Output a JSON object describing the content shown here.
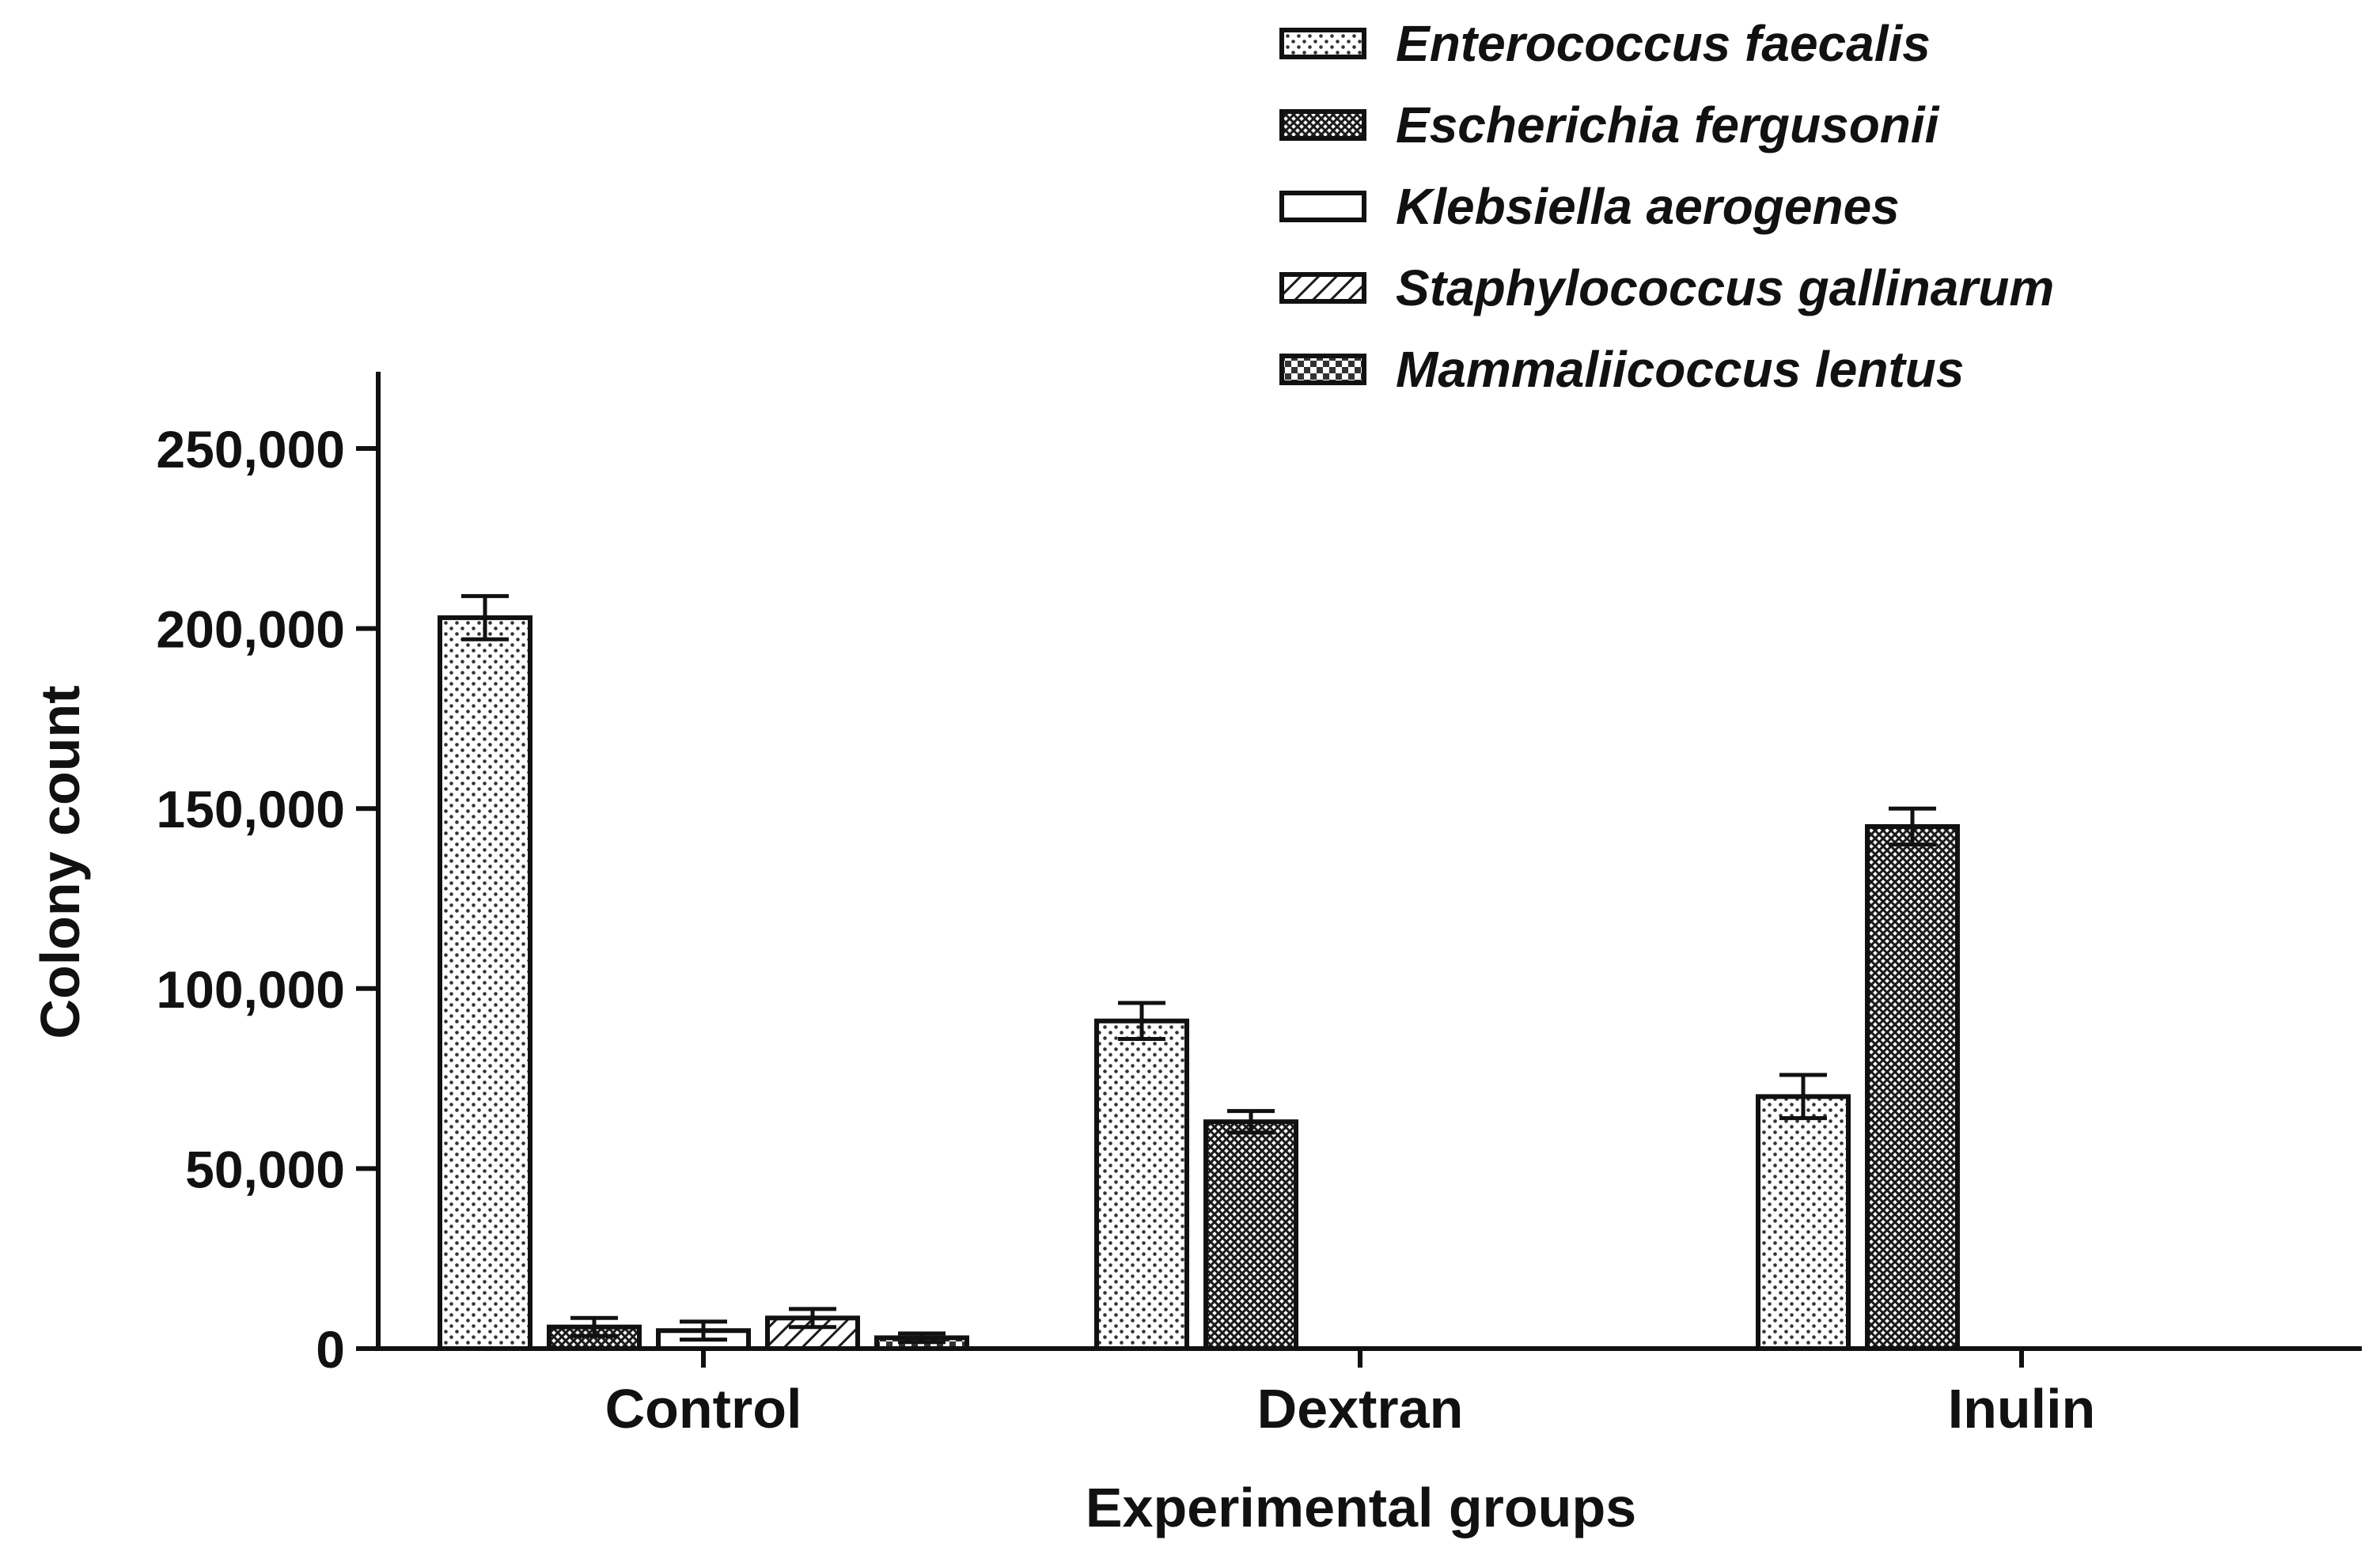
{
  "chart_data": {
    "type": "bar",
    "title": "",
    "xlabel": "Experimental groups",
    "ylabel": "Colony count",
    "ylim": [
      0,
      270000
    ],
    "yticks": [
      0,
      50000,
      100000,
      150000,
      200000,
      250000
    ],
    "ytick_labels": [
      "0",
      "50,000",
      "100,000",
      "150,000",
      "200,000",
      "250,000"
    ],
    "categories": [
      "Control",
      "Dextran",
      "Inulin"
    ],
    "legend_position": "top-right",
    "grid": false,
    "series": [
      {
        "name": "Enterococcus faecalis",
        "pattern": "dots",
        "values": [
          203000,
          91000,
          70000
        ],
        "errors": [
          6000,
          5000,
          6000
        ]
      },
      {
        "name": "Escherichia fergusonii",
        "pattern": "crosshatch",
        "values": [
          6000,
          63000,
          145000
        ],
        "errors": [
          2500,
          3000,
          5000
        ]
      },
      {
        "name": "Klebsiella aerogenes",
        "pattern": "open",
        "values": [
          5000,
          null,
          null
        ],
        "errors": [
          2500,
          null,
          null
        ]
      },
      {
        "name": "Staphylococcus gallinarum",
        "pattern": "diagonal",
        "values": [
          8500,
          null,
          null
        ],
        "errors": [
          2500,
          null,
          null
        ]
      },
      {
        "name": "Mammaliicoccus lentus",
        "pattern": "checker",
        "values": [
          3000,
          null,
          null
        ],
        "errors": [
          1200,
          null,
          null
        ]
      }
    ]
  }
}
